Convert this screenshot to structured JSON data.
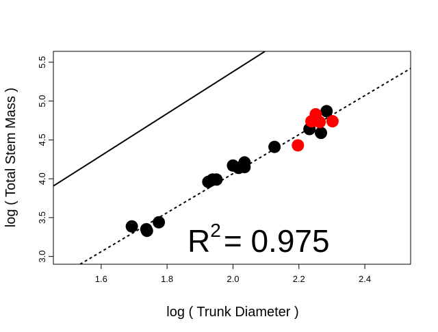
{
  "chart_data": {
    "type": "scatter",
    "x_label": "log ( Trunk Diameter  )",
    "y_label": "log ( Total Stem Mass )",
    "xlim": [
      1.455,
      2.539
    ],
    "ylim": [
      2.9,
      5.64
    ],
    "xticks": [
      1.6,
      1.8,
      {
        "value": 2,
        "label": "2.0"
      },
      2.2,
      2.4
    ],
    "yticks": [
      {
        "value": 3,
        "label": "3.0"
      },
      3.5,
      {
        "value": 4,
        "label": "4.0"
      },
      4.5,
      {
        "value": 5,
        "label": "5.0"
      },
      5.5
    ],
    "series": [
      {
        "color": "#000000",
        "x": [
          1.693,
          1.737,
          1.739,
          1.775,
          1.925,
          1.938,
          1.95,
          2.0,
          2.017,
          2.035,
          2.035,
          2.126,
          2.232,
          2.267,
          2.284
        ],
        "y": [
          3.387,
          3.35,
          3.33,
          3.44,
          3.96,
          3.99,
          3.99,
          4.17,
          4.14,
          4.15,
          4.21,
          4.41,
          4.64,
          4.59,
          4.87
        ]
      },
      {
        "color": "#ff0000",
        "x": [
          2.197,
          2.238,
          2.251,
          2.263,
          2.302
        ],
        "y": [
          4.43,
          4.74,
          4.83,
          4.73,
          4.74
        ]
      }
    ],
    "lines": [
      {
        "style": "solid",
        "x": [
          1.455,
          2.097
        ],
        "y": [
          3.907,
          5.64
        ]
      },
      {
        "style": "dotted",
        "x": [
          1.536,
          2.539
        ],
        "y": [
          2.9,
          5.42
        ]
      }
    ],
    "annotation": {
      "base": "R",
      "sup": "2",
      "text": "= 0.975"
    }
  }
}
